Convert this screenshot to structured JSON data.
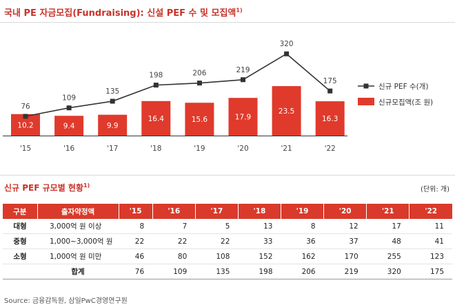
{
  "header": {
    "title": "국내 PE 자금모집(Fundraising): 신설 PEF 수 및 모집액",
    "title_note": "1)"
  },
  "chart_data": {
    "type": "bar+line",
    "categories": [
      "'15",
      "'16",
      "'17",
      "'18",
      "'19",
      "'20",
      "'21",
      "'22"
    ],
    "series": [
      {
        "name": "신규 PEF 수(개)",
        "type": "line",
        "values": [
          76,
          109,
          135,
          198,
          206,
          219,
          320,
          175
        ],
        "color": "#333333"
      },
      {
        "name": "신규모집액(조 원)",
        "type": "bar",
        "values": [
          10.2,
          9.4,
          9.9,
          16.4,
          15.6,
          17.9,
          23.5,
          16.3
        ],
        "color": "#e03a2c"
      }
    ],
    "legend_position": "right",
    "grid": false
  },
  "table": {
    "title": "신규 PEF 규모별 현황",
    "title_note": "1)",
    "unit": "(단위: 개)",
    "headers": [
      "구분",
      "출자약정액",
      "'15",
      "'16",
      "'17",
      "'18",
      "'19",
      "'20",
      "'21",
      "'22"
    ],
    "rows": [
      [
        "대형",
        "3,000억 원 이상",
        "8",
        "7",
        "5",
        "13",
        "8",
        "12",
        "17",
        "11"
      ],
      [
        "중형",
        "1,000~3,000억 원",
        "22",
        "22",
        "22",
        "33",
        "36",
        "37",
        "48",
        "41"
      ],
      [
        "소형",
        "1,000억 원 미만",
        "46",
        "80",
        "108",
        "152",
        "162",
        "170",
        "255",
        "123"
      ],
      [
        "",
        "합계",
        "76",
        "109",
        "135",
        "198",
        "206",
        "219",
        "320",
        "175"
      ]
    ]
  },
  "footer": {
    "source": "Source: 금융감독원, 삼일PwC경영연구원"
  }
}
